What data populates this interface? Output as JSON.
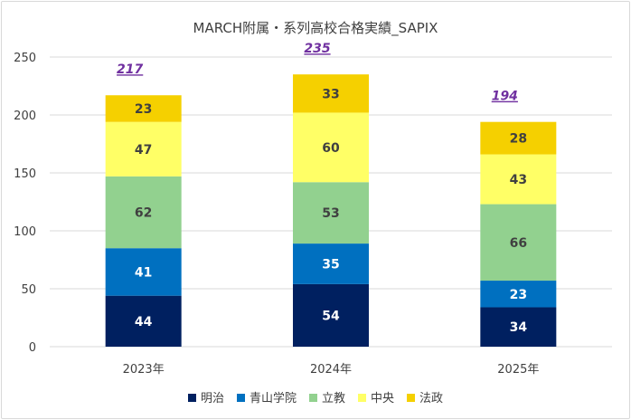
{
  "chart_data": {
    "type": "bar",
    "stacked": true,
    "title": "MARCH附属・系列高校合格実績_SAPIX",
    "categories": [
      "2023年",
      "2024年",
      "2025年"
    ],
    "series": [
      {
        "name": "明治",
        "values": [
          44,
          54,
          34
        ],
        "color": "#002060",
        "label_color": "#ffffff"
      },
      {
        "name": "青山学院",
        "values": [
          41,
          35,
          23
        ],
        "color": "#0070c0",
        "label_color": "#ffffff"
      },
      {
        "name": "立教",
        "values": [
          62,
          53,
          66
        ],
        "color": "#92d18f",
        "label_color": "#404040"
      },
      {
        "name": "中央",
        "values": [
          47,
          60,
          43
        ],
        "color": "#ffff66",
        "label_color": "#404040"
      },
      {
        "name": "法政",
        "values": [
          23,
          33,
          28
        ],
        "color": "#f5d000",
        "label_color": "#404040"
      }
    ],
    "totals": [
      217,
      235,
      194
    ],
    "ylim": [
      0,
      250
    ],
    "yticks": [
      0,
      50,
      100,
      150,
      200,
      250
    ],
    "xlabel": "",
    "ylabel": "",
    "grid": true,
    "legend_position": "bottom"
  }
}
